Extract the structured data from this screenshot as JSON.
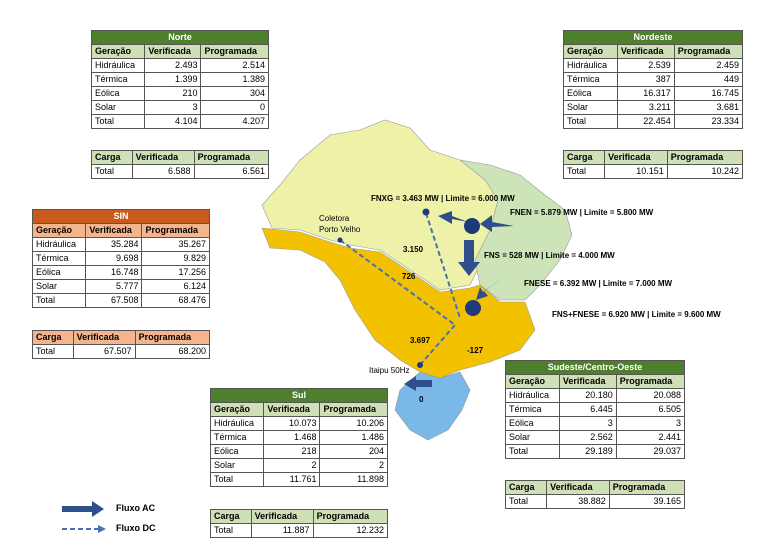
{
  "norte": {
    "title": "Norte",
    "headers": [
      "Geração",
      "Verificada",
      "Programada"
    ],
    "rows": [
      [
        "Hidráulica",
        "2.493",
        "2.514"
      ],
      [
        "Térmica",
        "1.399",
        "1.389"
      ],
      [
        "Eólica",
        "210",
        "304"
      ],
      [
        "Solar",
        "3",
        "0"
      ],
      [
        "Total",
        "4.104",
        "4.207"
      ]
    ],
    "carga": {
      "headers": [
        "Carga",
        "Verificada",
        "Programada"
      ],
      "row": [
        "Total",
        "6.588",
        "6.561"
      ]
    }
  },
  "nordeste": {
    "title": "Nordeste",
    "headers": [
      "Geração",
      "Verificada",
      "Programada"
    ],
    "rows": [
      [
        "Hidráulica",
        "2.539",
        "2.459"
      ],
      [
        "Térmica",
        "387",
        "449"
      ],
      [
        "Eólica",
        "16.317",
        "16.745"
      ],
      [
        "Solar",
        "3.211",
        "3.681"
      ],
      [
        "Total",
        "22.454",
        "23.334"
      ]
    ],
    "carga": {
      "headers": [
        "Carga",
        "Verificada",
        "Programada"
      ],
      "row": [
        "Total",
        "10.151",
        "10.242"
      ]
    }
  },
  "sin": {
    "title": "SIN",
    "headers": [
      "Geração",
      "Verificada",
      "Programada"
    ],
    "rows": [
      [
        "Hidráulica",
        "35.284",
        "35.267"
      ],
      [
        "Térmica",
        "9.698",
        "9.829"
      ],
      [
        "Eólica",
        "16.748",
        "17.256"
      ],
      [
        "Solar",
        "5.777",
        "6.124"
      ],
      [
        "Total",
        "67.508",
        "68.476"
      ]
    ],
    "carga": {
      "headers": [
        "Carga",
        "Verificada",
        "Programada"
      ],
      "row": [
        "Total",
        "67.507",
        "68.200"
      ]
    }
  },
  "sul": {
    "title": "Sul",
    "headers": [
      "Geração",
      "Verificada",
      "Programada"
    ],
    "rows": [
      [
        "Hidráulica",
        "10.073",
        "10.206"
      ],
      [
        "Térmica",
        "1.468",
        "1.486"
      ],
      [
        "Eólica",
        "218",
        "204"
      ],
      [
        "Solar",
        "2",
        "2"
      ],
      [
        "Total",
        "11.761",
        "11.898"
      ]
    ],
    "carga": {
      "headers": [
        "Carga",
        "Verificada",
        "Programada"
      ],
      "row": [
        "Total",
        "11.887",
        "12.232"
      ]
    }
  },
  "sudeste": {
    "title": "Sudeste/Centro-Oeste",
    "headers": [
      "Geração",
      "Verificada",
      "Programada"
    ],
    "rows": [
      [
        "Hidráulica",
        "20.180",
        "20.088"
      ],
      [
        "Térmica",
        "6.445",
        "6.505"
      ],
      [
        "Eólica",
        "3",
        "3"
      ],
      [
        "Solar",
        "2.562",
        "2.441"
      ],
      [
        "Total",
        "29.189",
        "29.037"
      ]
    ],
    "carga": {
      "headers": [
        "Carga",
        "Verificada",
        "Programada"
      ],
      "row": [
        "Total",
        "38.882",
        "39.165"
      ]
    }
  },
  "map_labels": {
    "fnxg": "FNXG = 3.463 MW | Limite = 6.000 MW",
    "fnen": "FNEN = 5.879 MW | Limite = 5.800 MW",
    "fns": "FNS = 528 MW | Limite = 4.000 MW",
    "fnese": "FNESE = 6.392 MW | Limite = 7.000 MW",
    "fns_fnese": "FNS+FNESE = 6.920 MW | Limite = 9.600 MW",
    "coletora": "Coletora",
    "porto_velho": "Porto Velho",
    "itaipu": "Itaipu 50Hz",
    "v3150": "3.150",
    "v726": "726",
    "v3697": "3.697",
    "vneg127": "-127",
    "v0": "0"
  },
  "legend": {
    "ac": "Fluxo AC",
    "dc": "Fluxo DC"
  },
  "colors": {
    "table_green": "#4d7f2c",
    "table_green_light": "#cfe0b6",
    "table_orange": "#c85a1b",
    "table_orange_light": "#f4b58c",
    "norte_region": "#eef2a8",
    "nordeste_region": "#cde3b8",
    "sudeste_region": "#f2c200",
    "sul_region": "#7ab8e8",
    "arrow": "#2f4e8c",
    "node": "#1f3a78"
  }
}
